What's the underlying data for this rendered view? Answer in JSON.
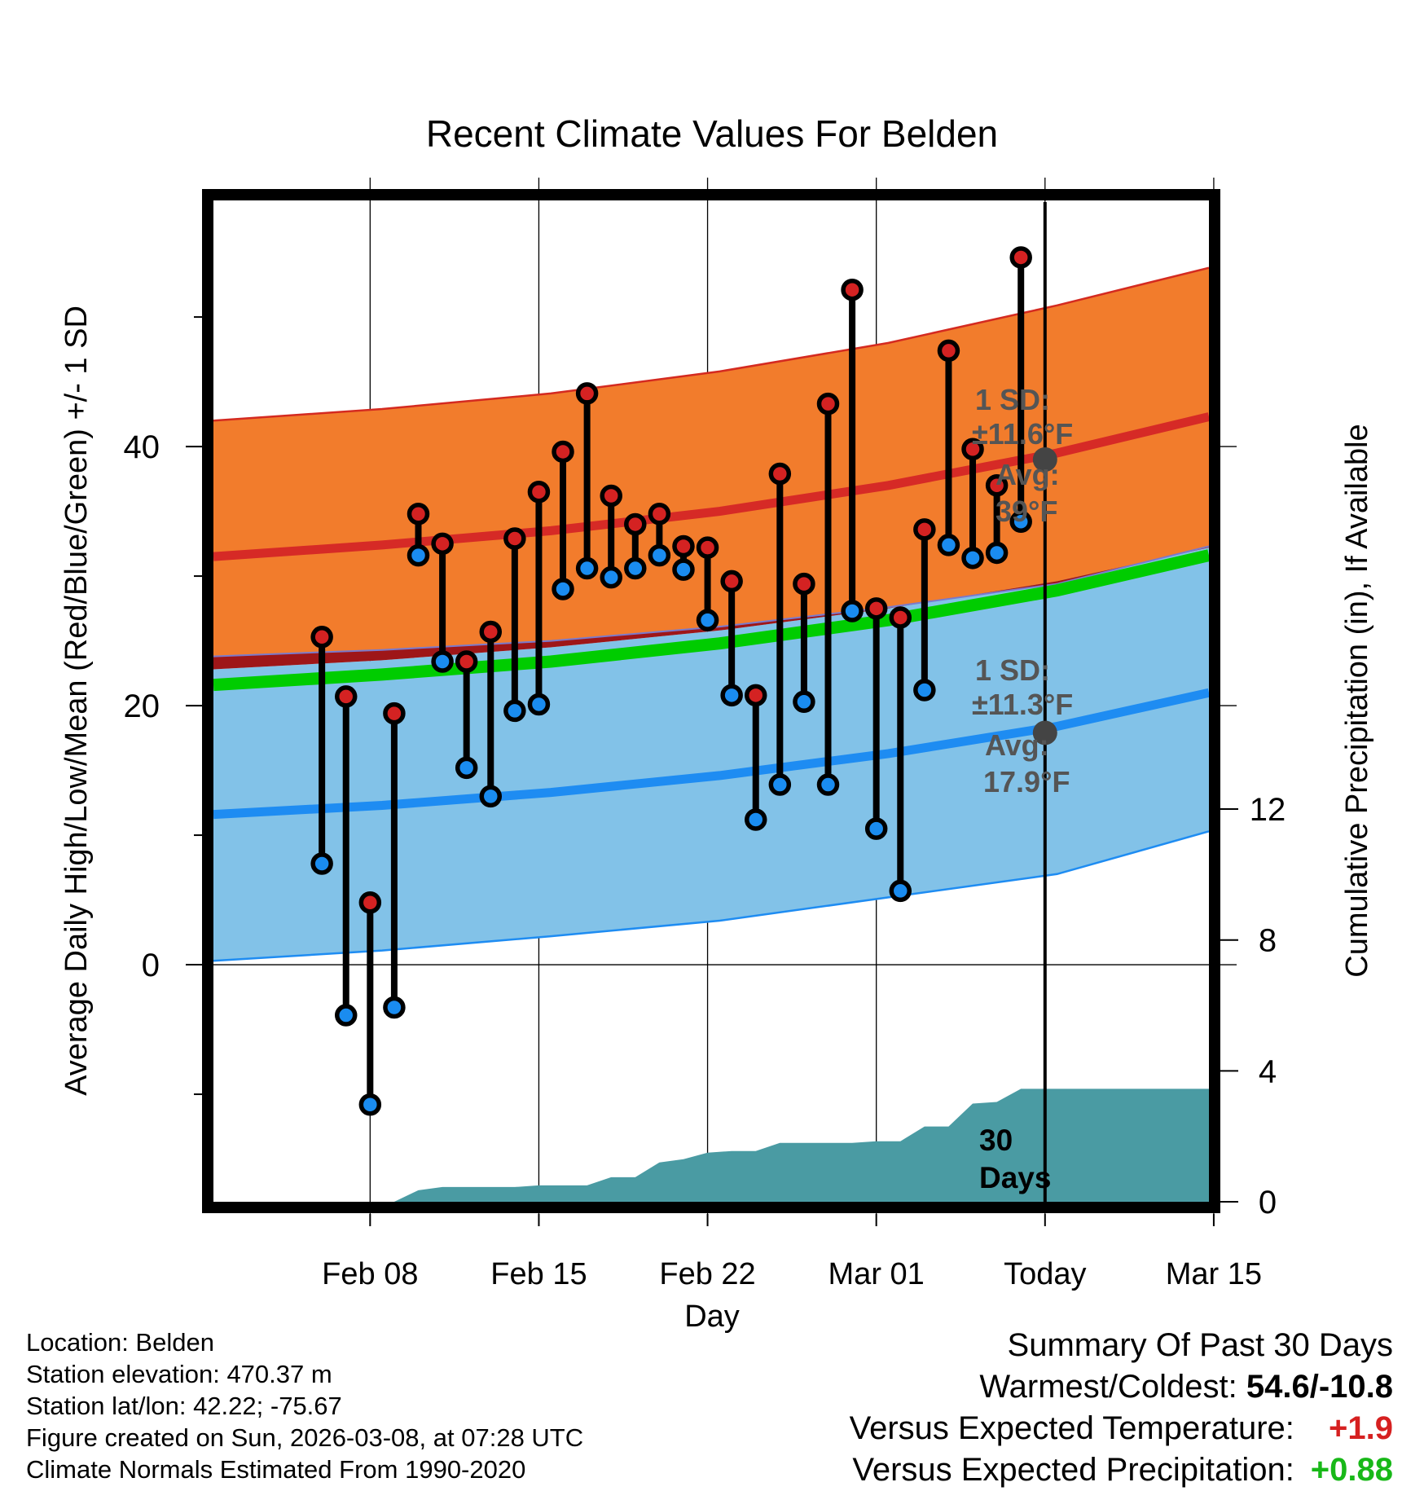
{
  "chart_data": {
    "type": "climate-range",
    "title": "Recent Climate Values For Belden",
    "xlabel": "Day",
    "ylabel": "Average Daily High/Low/Mean (Red/Blue/Green) +/- 1 SD",
    "ylabel_right": "Cumulative Precipitation (in), If Available",
    "x_range": [
      -34.5,
      6.8
    ],
    "x_ticks": [
      {
        "day": -28,
        "label": "Feb 08"
      },
      {
        "day": -21,
        "label": "Feb 15"
      },
      {
        "day": -14,
        "label": "Feb 22"
      },
      {
        "day": -7,
        "label": "Mar 01"
      },
      {
        "day": 0,
        "label": "Today"
      },
      {
        "day": 7,
        "label": "Mar 15"
      }
    ],
    "ylim": [
      -18.3,
      59
    ],
    "y_ticks": [
      0,
      20,
      40
    ],
    "y_minor_ticks": [
      -10,
      10,
      30,
      50
    ],
    "precip_ylim": [
      0,
      30.6
    ],
    "precip_ticks": [
      0,
      4,
      8,
      12
    ],
    "normals": {
      "days": [
        -34.5,
        -27.5,
        -20.5,
        -13.5,
        -6.5,
        0.5,
        6.8
      ],
      "high_mean": [
        31.5,
        32.4,
        33.5,
        35.0,
        37.0,
        39.5,
        42.3
      ],
      "high_upper": [
        42.0,
        42.9,
        44.1,
        45.8,
        48.0,
        50.9,
        53.8
      ],
      "high_lower": [
        23.8,
        24.3,
        25.0,
        26.1,
        27.6,
        29.4,
        32.3
      ],
      "low_mean": [
        11.6,
        12.3,
        13.3,
        14.6,
        16.3,
        18.4,
        21.0
      ],
      "low_upper": [
        22.8,
        23.5,
        24.5,
        25.8,
        27.5,
        29.6,
        32.2
      ],
      "low_lower": [
        0.3,
        1.1,
        2.2,
        3.4,
        5.2,
        7.0,
        10.3
      ],
      "mean": [
        21.6,
        22.4,
        23.4,
        24.8,
        26.6,
        28.9,
        31.6
      ]
    },
    "observed": {
      "days": [
        -30,
        -29,
        -28,
        -27,
        -26,
        -25,
        -24,
        -23,
        -22,
        -21,
        -20,
        -19,
        -18,
        -17,
        -16,
        -15,
        -14,
        -13,
        -12,
        -11,
        -10,
        -9,
        -8,
        -7,
        -6,
        -5,
        -4,
        -3,
        -2,
        -1
      ],
      "high": [
        25.3,
        20.7,
        4.8,
        19.4,
        34.8,
        32.5,
        23.4,
        25.7,
        32.9,
        36.5,
        39.6,
        44.1,
        36.2,
        34.0,
        34.8,
        32.3,
        32.2,
        29.6,
        20.8,
        37.9,
        29.4,
        43.3,
        52.1,
        27.5,
        26.8,
        33.6,
        47.4,
        39.8,
        37.0,
        54.6
      ],
      "low": [
        7.8,
        -3.9,
        -10.8,
        -3.3,
        31.6,
        23.4,
        15.2,
        13.0,
        19.6,
        20.1,
        29.0,
        30.6,
        29.9,
        30.6,
        31.6,
        30.5,
        26.6,
        20.8,
        11.2,
        13.9,
        20.3,
        13.9,
        27.3,
        10.5,
        5.7,
        21.2,
        32.4,
        31.4,
        31.8,
        34.2
      ]
    },
    "precipitation": {
      "days": [
        -28,
        -27,
        -26,
        -25,
        -24,
        -22,
        -21,
        -20,
        -19,
        -18,
        -17,
        -16,
        -15,
        -14,
        -13,
        -12,
        -11,
        -10,
        -9,
        -8,
        -7,
        -6,
        -5,
        -4,
        -3,
        -2,
        -1,
        0,
        6.8
      ],
      "values": [
        0,
        0.0,
        0.35,
        0.45,
        0.45,
        0.45,
        0.5,
        0.5,
        0.5,
        0.75,
        0.75,
        1.2,
        1.3,
        1.5,
        1.55,
        1.55,
        1.8,
        1.8,
        1.8,
        1.8,
        1.85,
        1.85,
        2.3,
        2.3,
        3.0,
        3.05,
        3.45,
        3.45,
        3.45
      ]
    },
    "annotations": {
      "high_sd_label": "1 SD:",
      "high_sd_value": "±11.6°F",
      "high_avg_label": "Avg:",
      "high_avg_value": "39°F",
      "high_avg": 39,
      "low_sd_label": "1 SD:",
      "low_sd_value": "±11.3°F",
      "low_avg_label": "Avg:",
      "low_avg_value": "17.9°F",
      "low_avg": 17.9,
      "window_line1": "30",
      "window_line2": "Days"
    },
    "colors": {
      "high_band": "#f27c2c",
      "high_line": "#d62a26",
      "low_band": "#82c2e8",
      "low_line": "#1e8cf2",
      "mean_line": "#00cc00",
      "overlap": "#9e1618",
      "precip": "#4a9ba3",
      "high_dot": "#d42222",
      "low_dot": "#1a8cf0",
      "avg_dot": "#444444",
      "annot": "#555555"
    }
  },
  "footer": {
    "location": "Location: Belden",
    "elevation": "Station elevation: 470.37 m",
    "latlon": "Station lat/lon: 42.22; -75.67",
    "created": "Figure created on Sun, 2026-03-08, at 07:28 UTC",
    "normals": "Climate Normals Estimated From 1990-2020"
  },
  "summary": {
    "heading": "Summary Of Past 30 Days",
    "warm_cold_label": "Warmest/Coldest:",
    "warm_cold_value": "54.6/-10.8",
    "temp_label": "Versus Expected Temperature:",
    "temp_value": "+1.9",
    "precip_label": "Versus Expected Precipitation:",
    "precip_value": "+0.88"
  }
}
